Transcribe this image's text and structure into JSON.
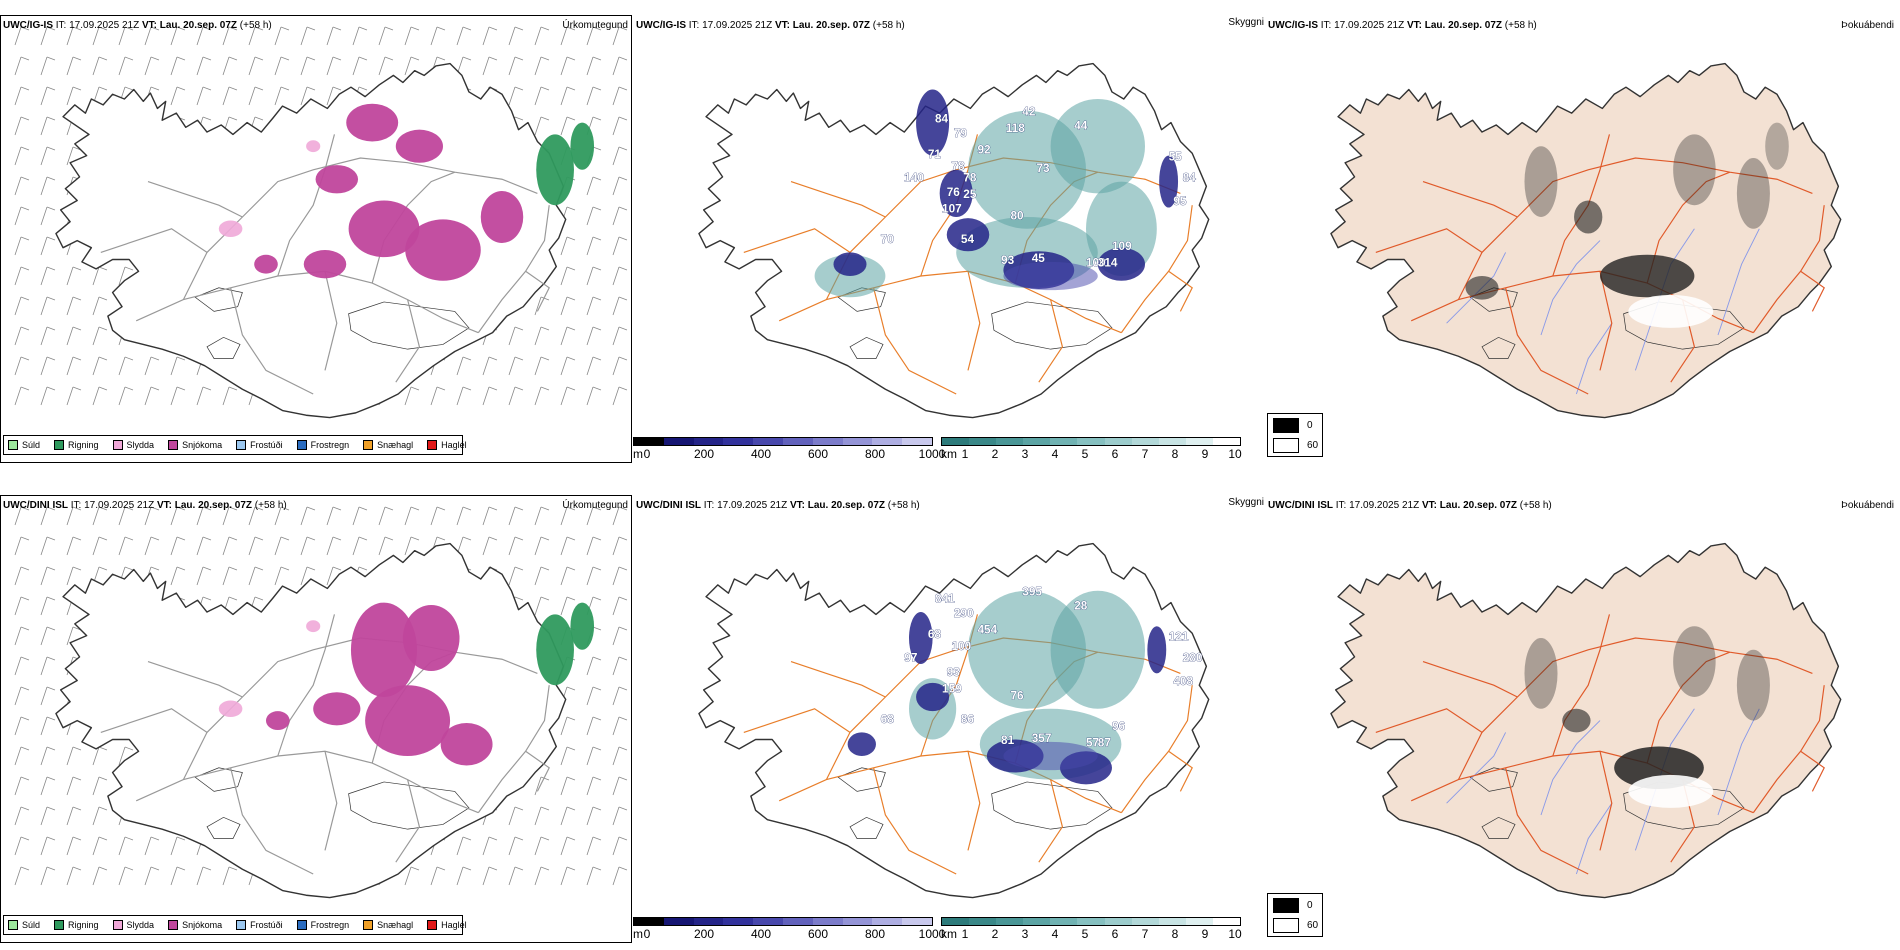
{
  "rows": [
    {
      "model": "UWC/IG-IS",
      "issue_prefix": "IT:",
      "issue_time": "17.09.2025 21Z",
      "valid_prefix": "VT:",
      "valid_time": "Lau. 20.sep. 07Z",
      "lead": "(+58 h)",
      "cloud_labels": [
        "84",
        "79",
        "92",
        "71",
        "78",
        "140",
        "76",
        "107",
        "80",
        "70",
        "54",
        "93",
        "45",
        "100",
        "109",
        "314",
        "55",
        "84",
        "95",
        "42",
        "44",
        "118",
        "73",
        "78",
        "25"
      ]
    },
    {
      "model": "UWC/DINI ISL",
      "issue_prefix": "IT:",
      "issue_time": "17.09.2025 21Z",
      "valid_prefix": "VT:",
      "valid_time": "Lau. 20.sep. 07Z",
      "lead": "(+58 h)",
      "cloud_labels": [
        "841",
        "290",
        "454",
        "68",
        "100",
        "97",
        "93",
        "159",
        "76",
        "68",
        "86",
        "81",
        "357",
        "57",
        "96",
        "87",
        "121",
        "280",
        "408",
        "395",
        "28"
      ]
    }
  ],
  "panels": {
    "precip_type": {
      "title": "Úrkomutegund",
      "legend": [
        {
          "label": "Súld",
          "color": "#9ce89c"
        },
        {
          "label": "Rigning",
          "color": "#2f9a5e"
        },
        {
          "label": "Slydda",
          "color": "#f0a8d8"
        },
        {
          "label": "Snjókoma",
          "color": "#c0469c"
        },
        {
          "label": "Frostúði",
          "color": "#9cc8f0"
        },
        {
          "label": "Frostregn",
          "color": "#2a6cc0"
        },
        {
          "label": "Snæhagl",
          "color": "#f0a028"
        },
        {
          "label": "Haglél",
          "color": "#e01818"
        }
      ]
    },
    "visibility": {
      "title": "Skyggni",
      "ceiling_unit": "m",
      "ceiling_ticks": [
        "0",
        "200",
        "400",
        "600",
        "800",
        "1000"
      ],
      "ceiling_colors": [
        "#000000",
        "#161673",
        "#242488",
        "#32329c",
        "#4848ac",
        "#6262bc",
        "#7c7cca",
        "#9494d6",
        "#aeaee2",
        "#c8c8ec"
      ],
      "vis_unit": "km",
      "vis_ticks": [
        "1",
        "2",
        "3",
        "4",
        "5",
        "6",
        "7",
        "8",
        "9",
        "10"
      ],
      "vis_colors": [
        "#2d7b7b",
        "#3a8888",
        "#4a9696",
        "#5ca4a4",
        "#70b2b2",
        "#86c0c0",
        "#9ccccc",
        "#b2d8d8",
        "#c8e4e4",
        "#dff0f0",
        "#ffffff"
      ]
    },
    "fog": {
      "title": "Þokuábendi",
      "legend": [
        {
          "label": "0",
          "color": "#000000"
        },
        {
          "label": "60",
          "color": "#ffffff"
        }
      ]
    }
  }
}
